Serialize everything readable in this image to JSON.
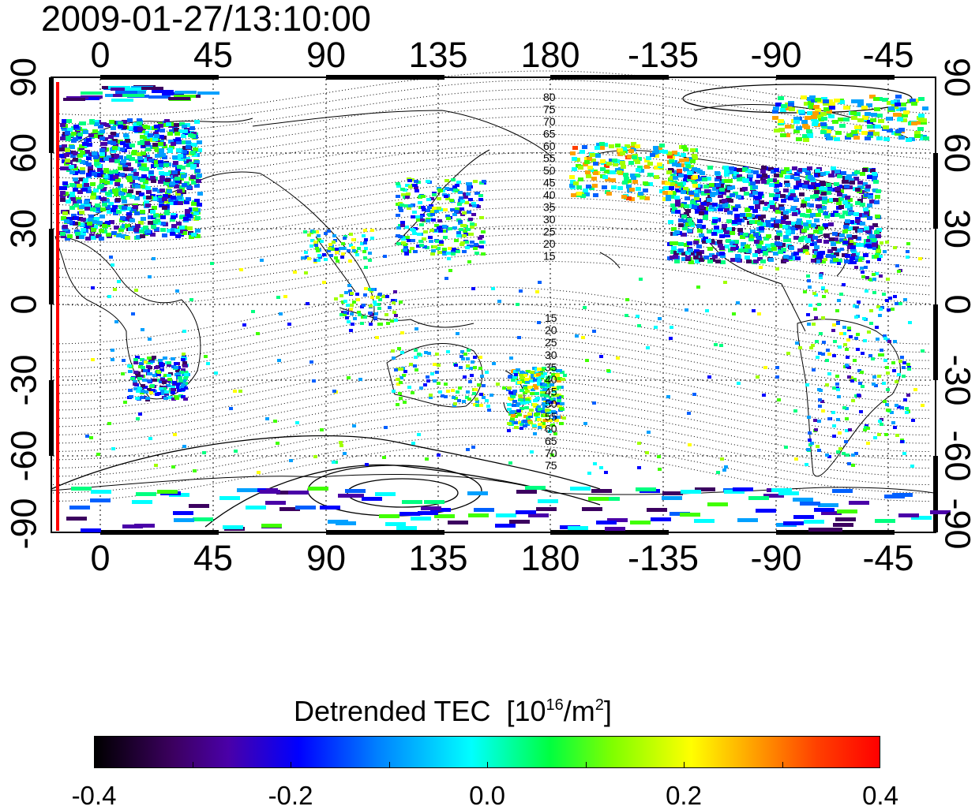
{
  "timestamp": "2009-01-27/13:10:00",
  "map": {
    "lon_ticks_top": [
      "0",
      "45",
      "90",
      "135",
      "180",
      "-135",
      "-90",
      "-45"
    ],
    "lon_ticks_bottom": [
      "0",
      "45",
      "90",
      "135",
      "180",
      "-135",
      "-90",
      "-45"
    ],
    "lat_ticks_left": [
      "90",
      "60",
      "30",
      "0",
      "-30",
      "-60",
      "-90"
    ],
    "lat_ticks_right": [
      "90",
      "60",
      "30",
      "0",
      "-30",
      "-60",
      "-90"
    ],
    "contour_labels_north": [
      "80",
      "75",
      "70",
      "65",
      "60",
      "55",
      "50",
      "45",
      "40",
      "35",
      "30",
      "25",
      "20",
      "15"
    ],
    "contour_labels_south": [
      "15",
      "20",
      "25",
      "30",
      "35",
      "40",
      "45",
      "50",
      "55",
      "60",
      "65",
      "70",
      "75"
    ],
    "marker_line_color": "#ff0000"
  },
  "colorbar": {
    "title": "Detrended TEC",
    "unit_prefix": "[10",
    "unit_exp": "16",
    "unit_mid": "/m",
    "unit_exp2": "2",
    "unit_suffix": "]",
    "ticks": [
      "-0.4",
      "-0.2",
      "0.0",
      "0.2",
      "0.4"
    ],
    "min": -0.4,
    "max": 0.4
  }
}
